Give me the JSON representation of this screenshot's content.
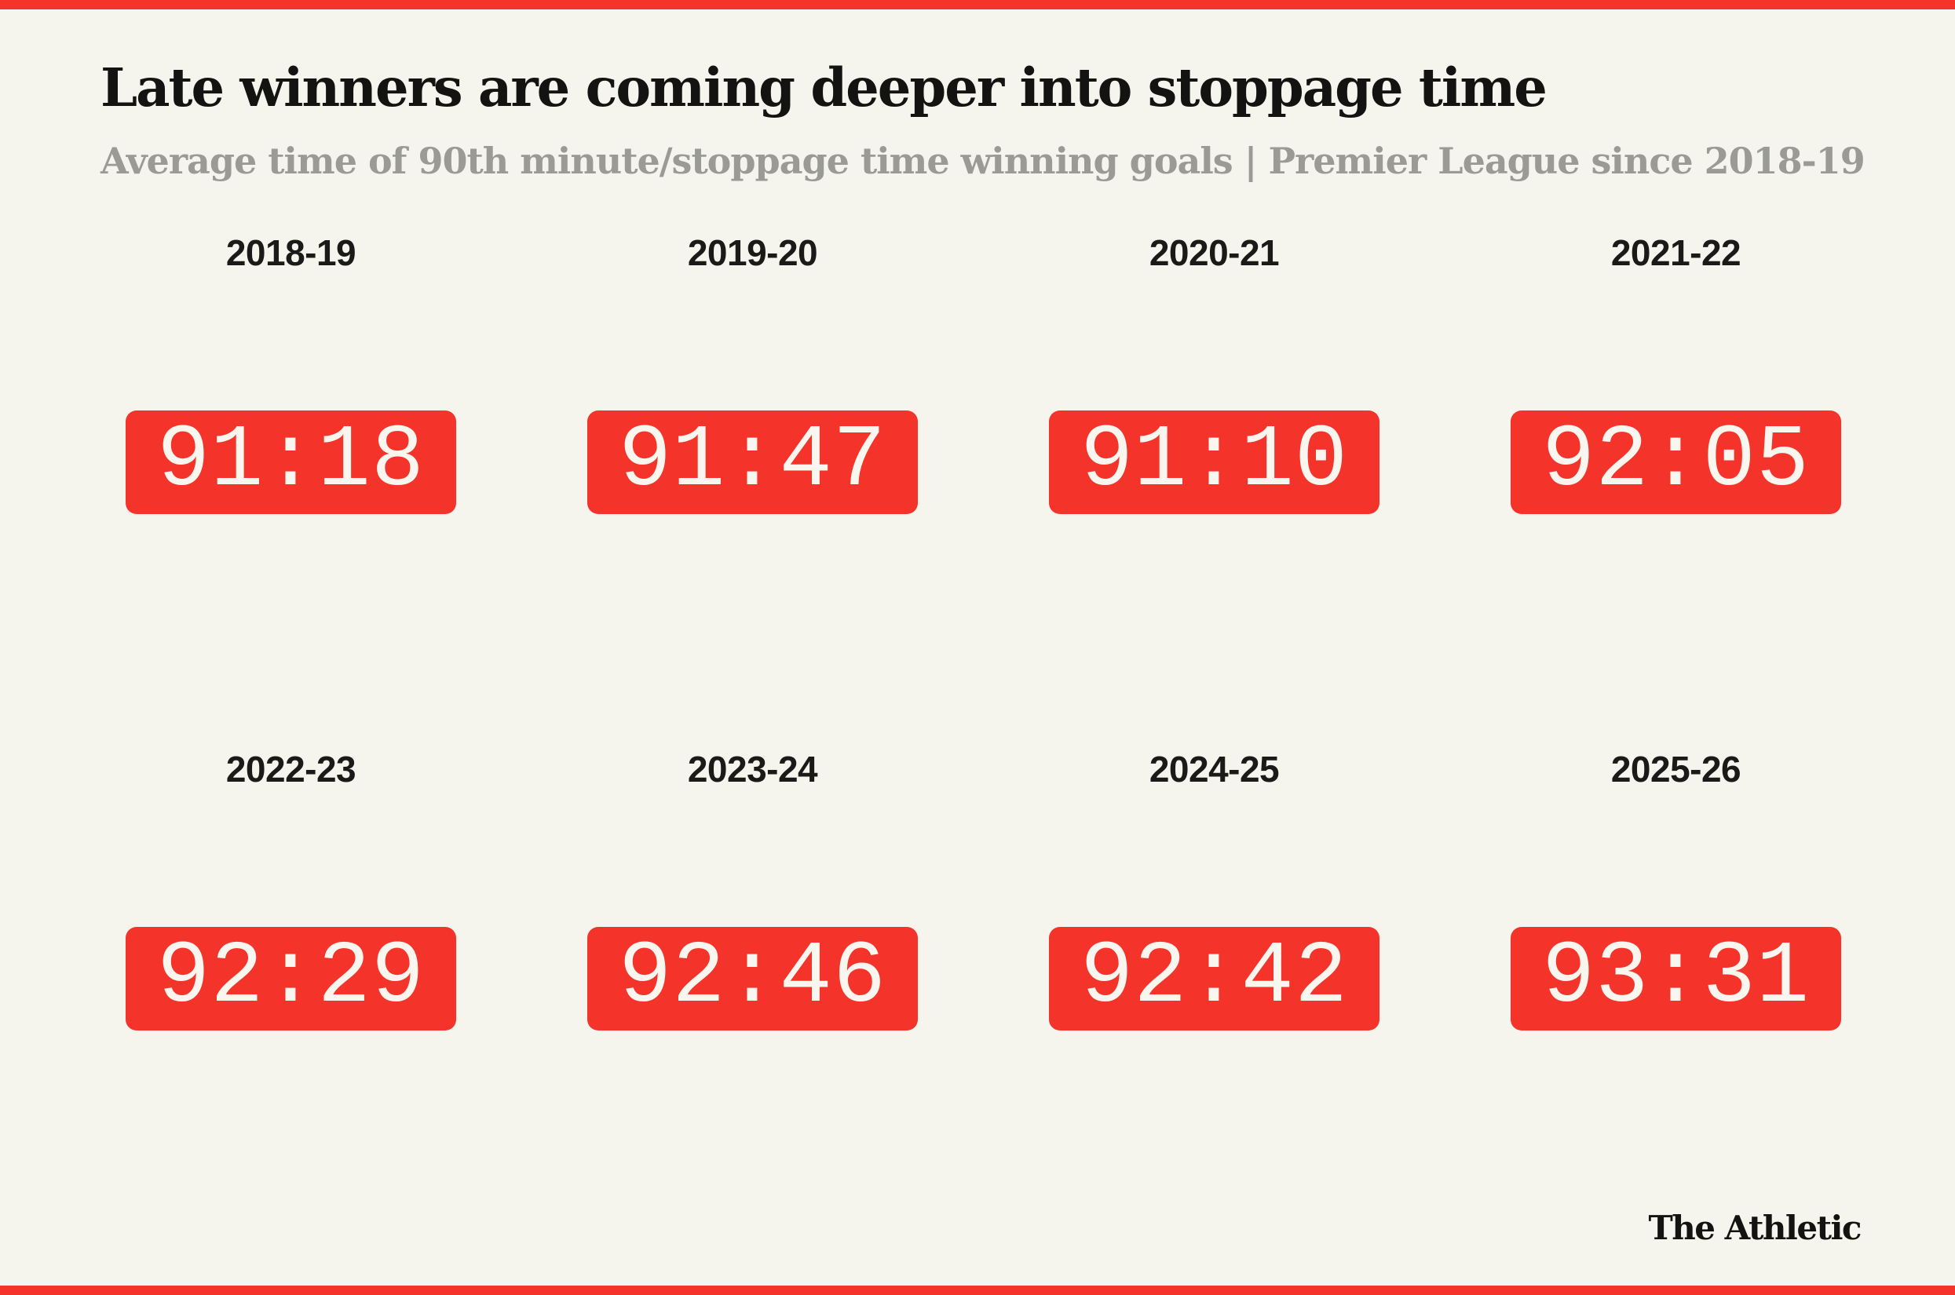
{
  "page": {
    "background_color": "#F5F4ED",
    "accent_red": "#F4342B",
    "text_black": "#131312",
    "text_gray": "#9B9B96",
    "time_text_color": "#F8F6EE"
  },
  "header": {
    "title": "Late winners are coming deeper into stoppage time",
    "subtitle": "Average time of 90th minute/stoppage time winning goals | Premier League since 2018-19"
  },
  "cells": [
    {
      "season": "2018-19",
      "time": "91:18"
    },
    {
      "season": "2019-20",
      "time": "91:47"
    },
    {
      "season": "2020-21",
      "time": "91:10"
    },
    {
      "season": "2021-22",
      "time": "92:05"
    },
    {
      "season": "2022-23",
      "time": "92:29"
    },
    {
      "season": "2023-24",
      "time": "92:46"
    },
    {
      "season": "2024-25",
      "time": "92:42"
    },
    {
      "season": "2025-26",
      "time": "93:31"
    }
  ],
  "chart_data": {
    "type": "table",
    "title": "Late winners are coming deeper into stoppage time",
    "subtitle": "Average time of 90th minute/stoppage time winning goals | Premier League since 2018-19",
    "categories": [
      "2018-19",
      "2019-20",
      "2020-21",
      "2021-22",
      "2022-23",
      "2023-24",
      "2024-25",
      "2025-26"
    ],
    "values": [
      "91:18",
      "91:47",
      "91:10",
      "92:05",
      "92:29",
      "92:46",
      "92:42",
      "93:31"
    ],
    "values_in_seconds": [
      5478,
      5507,
      5470,
      5525,
      5549,
      5566,
      5562,
      5611
    ],
    "unit": "match minute (mm:ss)",
    "layout": "2 rows x 4 columns of red time boxes with season labels above",
    "legend_position": "none",
    "grid": false
  },
  "footer": {
    "brand": "The Athletic"
  }
}
